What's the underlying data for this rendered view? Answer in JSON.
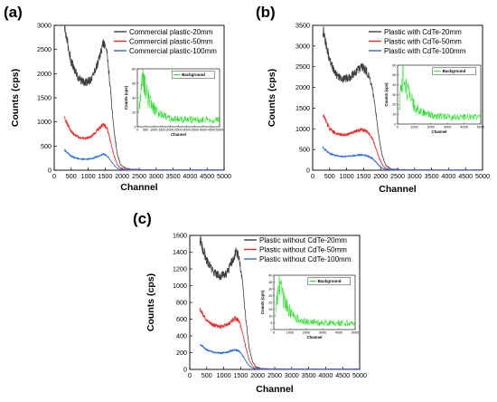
{
  "chart_data": [
    {
      "panel": "(a)",
      "type": "line",
      "xlabel": "Channel",
      "ylabel": "Counts (cps)",
      "xlim": [
        0,
        5000
      ],
      "ylim": [
        0,
        3000
      ],
      "xticks": [
        0,
        500,
        1000,
        1500,
        2000,
        2500,
        3000,
        3500,
        4000,
        4500,
        5000
      ],
      "yticks": [
        0,
        500,
        1000,
        1500,
        2000,
        2500,
        3000
      ],
      "legend_position": "top-right",
      "series": [
        {
          "name": "Commercial plastic-20mm",
          "color": "#404040",
          "x": [
            300,
            500,
            700,
            900,
            1100,
            1300,
            1450,
            1550,
            1650,
            1750,
            1850,
            1950,
            2100,
            2300,
            2600,
            3000,
            3500,
            4000,
            4500,
            5000
          ],
          "values": [
            2950,
            2250,
            1920,
            1800,
            1900,
            2250,
            2650,
            2480,
            1700,
            900,
            350,
            120,
            40,
            15,
            8,
            5,
            4,
            3,
            3,
            3
          ]
        },
        {
          "name": "Commercial plastic-50mm",
          "color": "#ee2a2a",
          "x": [
            300,
            500,
            700,
            900,
            1100,
            1300,
            1450,
            1550,
            1650,
            1750,
            1850,
            1950,
            2100,
            2300,
            2600,
            3000,
            3500,
            4000,
            4500,
            5000
          ],
          "values": [
            1100,
            800,
            680,
            650,
            700,
            850,
            950,
            880,
            620,
            330,
            130,
            45,
            15,
            6,
            4,
            3,
            2,
            2,
            2,
            2
          ]
        },
        {
          "name": "Commercial plastic-100mm",
          "color": "#2a6bd6",
          "x": [
            300,
            500,
            700,
            900,
            1100,
            1300,
            1450,
            1550,
            1650,
            1750,
            1850,
            1950,
            2100,
            2300,
            2600,
            3000,
            3500,
            4000,
            4500,
            5000
          ],
          "values": [
            420,
            290,
            240,
            225,
            240,
            290,
            330,
            300,
            210,
            110,
            45,
            16,
            6,
            3,
            2,
            2,
            2,
            2,
            2,
            2
          ]
        }
      ],
      "inset": {
        "legend": "Background",
        "xlabel": "Channel",
        "ylabel": "Counts (cps)",
        "xlim": [
          0,
          5000
        ],
        "ylim": [
          0,
          80
        ],
        "xticks": [
          0,
          500,
          1000,
          1500,
          2000,
          2500,
          3000,
          3500,
          4000,
          4500,
          5000
        ],
        "yticks": [
          0,
          20,
          40,
          60,
          80
        ],
        "color": "#22dd22"
      }
    },
    {
      "panel": "(b)",
      "type": "line",
      "xlabel": "Channel",
      "ylabel": "Counts (cps)",
      "xlim": [
        0,
        5000
      ],
      "ylim": [
        0,
        3500
      ],
      "xticks": [
        0,
        500,
        1000,
        1500,
        2000,
        2500,
        3000,
        3500,
        4000,
        4500,
        5000
      ],
      "yticks": [
        0,
        500,
        1000,
        1500,
        2000,
        2500,
        3000,
        3500
      ],
      "legend_position": "top-right",
      "series": [
        {
          "name": "Plastic with CdTe-20mm",
          "color": "#404040",
          "x": [
            300,
            500,
            700,
            900,
            1100,
            1300,
            1450,
            1600,
            1750,
            1850,
            1950,
            2050,
            2150,
            2300,
            2600,
            3000,
            3500,
            4000,
            4500,
            5000
          ],
          "values": [
            3400,
            2650,
            2300,
            2200,
            2250,
            2400,
            2500,
            2380,
            2000,
            1450,
            800,
            350,
            120,
            30,
            10,
            5,
            4,
            3,
            3,
            3
          ]
        },
        {
          "name": "Plastic with CdTe-50mm",
          "color": "#ee2a2a",
          "x": [
            300,
            500,
            700,
            900,
            1100,
            1300,
            1450,
            1600,
            1750,
            1850,
            1950,
            2050,
            2150,
            2300,
            2600,
            3000,
            3500,
            4000,
            4500,
            5000
          ],
          "values": [
            1350,
            1000,
            880,
            850,
            880,
            950,
            980,
            930,
            780,
            560,
            310,
            130,
            45,
            12,
            5,
            3,
            2,
            2,
            2,
            2
          ]
        },
        {
          "name": "Plastic with CdTe-100mm",
          "color": "#2a6bd6",
          "x": [
            300,
            500,
            700,
            900,
            1100,
            1300,
            1450,
            1600,
            1750,
            1850,
            1950,
            2050,
            2150,
            2300,
            2600,
            3000,
            3500,
            4000,
            4500,
            5000
          ],
          "values": [
            550,
            400,
            350,
            330,
            340,
            360,
            370,
            350,
            290,
            210,
            115,
            50,
            18,
            6,
            3,
            2,
            2,
            2,
            2,
            2
          ]
        }
      ],
      "inset": {
        "legend": "Background",
        "xlabel": "Channel",
        "ylabel": "Counts (cps)",
        "xlim": [
          0,
          5000
        ],
        "ylim": [
          0,
          60
        ],
        "xticks": [
          0,
          1000,
          2000,
          3000,
          4000,
          5000
        ],
        "yticks": [
          0,
          10,
          20,
          30,
          40,
          50,
          60
        ],
        "color": "#22dd22"
      }
    },
    {
      "panel": "(c)",
      "type": "line",
      "xlabel": "Channel",
      "ylabel": "Counts (cps)",
      "xlim": [
        0,
        5000
      ],
      "ylim": [
        0,
        1600
      ],
      "xticks": [
        0,
        500,
        1000,
        1500,
        2000,
        2500,
        3000,
        3500,
        4000,
        4500,
        5000
      ],
      "yticks": [
        0,
        200,
        400,
        600,
        800,
        1000,
        1200,
        1400,
        1600
      ],
      "legend_position": "top-right",
      "series": [
        {
          "name": "Plastic without CdTe-20mm",
          "color": "#404040",
          "x": [
            300,
            500,
            700,
            900,
            1100,
            1250,
            1350,
            1450,
            1550,
            1650,
            1750,
            1850,
            1950,
            2100,
            2300,
            2600,
            3000,
            3500,
            4000,
            5000
          ],
          "values": [
            1550,
            1300,
            1160,
            1110,
            1150,
            1300,
            1400,
            1350,
            1050,
            600,
            250,
            90,
            30,
            10,
            5,
            4,
            3,
            3,
            2,
            2
          ]
        },
        {
          "name": "Plastic without CdTe-50mm",
          "color": "#ee2a2a",
          "x": [
            300,
            500,
            700,
            900,
            1100,
            1250,
            1350,
            1450,
            1550,
            1650,
            1750,
            1850,
            1950,
            2100,
            2300,
            2600,
            3000,
            3500,
            4000,
            5000
          ],
          "values": [
            720,
            580,
            530,
            510,
            530,
            580,
            610,
            580,
            450,
            260,
            110,
            40,
            14,
            5,
            3,
            2,
            2,
            2,
            2,
            2
          ]
        },
        {
          "name": "Plastic without CdTe-100mm",
          "color": "#2a6bd6",
          "x": [
            300,
            500,
            700,
            900,
            1100,
            1250,
            1350,
            1450,
            1550,
            1650,
            1750,
            1850,
            1950,
            2100,
            2300,
            2600,
            3000,
            3500,
            4000,
            5000
          ],
          "values": [
            300,
            230,
            205,
            195,
            205,
            225,
            235,
            220,
            170,
            100,
            42,
            15,
            6,
            3,
            2,
            2,
            2,
            2,
            2,
            2
          ]
        }
      ],
      "inset": {
        "legend": "Background",
        "xlabel": "Channel",
        "ylabel": "Counts (cps)",
        "xlim": [
          0,
          5000
        ],
        "ylim": [
          0,
          40
        ],
        "xticks": [
          0,
          1000,
          2000,
          3000,
          4000,
          5000
        ],
        "yticks": [
          0,
          5,
          10,
          15,
          20,
          25,
          30,
          35,
          40
        ],
        "color": "#22dd22"
      }
    }
  ]
}
